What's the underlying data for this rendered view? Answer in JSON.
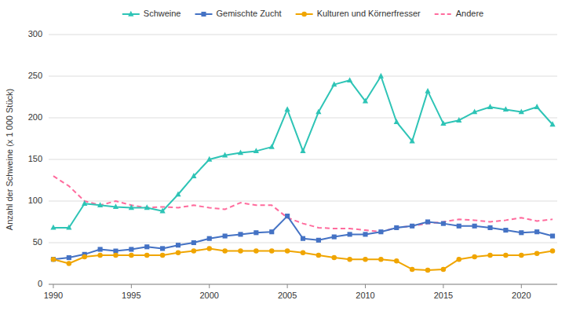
{
  "chart_data": {
    "type": "line",
    "y_label": "Anzahl der Schweine (x 1 000 Stück)",
    "x": [
      1990,
      1991,
      1992,
      1993,
      1994,
      1995,
      1996,
      1997,
      1998,
      1999,
      2000,
      2001,
      2002,
      2003,
      2004,
      2005,
      2006,
      2007,
      2008,
      2009,
      2010,
      2011,
      2012,
      2013,
      2014,
      2015,
      2016,
      2017,
      2018,
      2019,
      2020,
      2021,
      2022
    ],
    "series": [
      {
        "name": "Schweine",
        "color": "#2ec4b6",
        "marker": "triangle",
        "line_style": "solid",
        "values": [
          68,
          68,
          97,
          95,
          93,
          92,
          92,
          88,
          108,
          130,
          150,
          155,
          158,
          160,
          165,
          210,
          160,
          207,
          240,
          245,
          220,
          250,
          195,
          172,
          232,
          193,
          197,
          207,
          213,
          210,
          207,
          213,
          192
        ]
      },
      {
        "name": "Gemischte Zucht",
        "color": "#4472c4",
        "marker": "square",
        "line_style": "solid",
        "values": [
          30,
          32,
          36,
          42,
          40,
          42,
          45,
          43,
          47,
          50,
          55,
          58,
          60,
          62,
          63,
          82,
          55,
          53,
          57,
          60,
          60,
          63,
          68,
          70,
          75,
          73,
          70,
          70,
          68,
          65,
          62,
          63,
          58
        ]
      },
      {
        "name": "Kulturen und Körnerfresser",
        "color": "#f0a500",
        "marker": "circle",
        "line_style": "solid",
        "values": [
          30,
          25,
          33,
          35,
          35,
          35,
          35,
          35,
          38,
          40,
          43,
          40,
          40,
          40,
          40,
          40,
          38,
          35,
          32,
          30,
          30,
          30,
          28,
          18,
          17,
          18,
          30,
          33,
          35,
          35,
          35,
          37,
          40
        ]
      },
      {
        "name": "Andere",
        "color": "#ff6b9d",
        "marker": "none",
        "line_style": "dashed",
        "values": [
          130,
          118,
          100,
          95,
          100,
          95,
          92,
          93,
          92,
          95,
          92,
          90,
          98,
          95,
          95,
          80,
          73,
          68,
          67,
          67,
          65,
          63,
          68,
          70,
          73,
          75,
          78,
          77,
          75,
          77,
          80,
          76,
          78
        ]
      }
    ],
    "xlim": [
      1989.7,
      2022.3
    ],
    "xticks": [
      1990,
      1995,
      2000,
      2005,
      2010,
      2015,
      2020
    ],
    "ylim": [
      0,
      300
    ],
    "yticks": [
      0,
      50,
      100,
      150,
      200,
      250,
      300
    ],
    "grid": true,
    "legend": "top"
  }
}
